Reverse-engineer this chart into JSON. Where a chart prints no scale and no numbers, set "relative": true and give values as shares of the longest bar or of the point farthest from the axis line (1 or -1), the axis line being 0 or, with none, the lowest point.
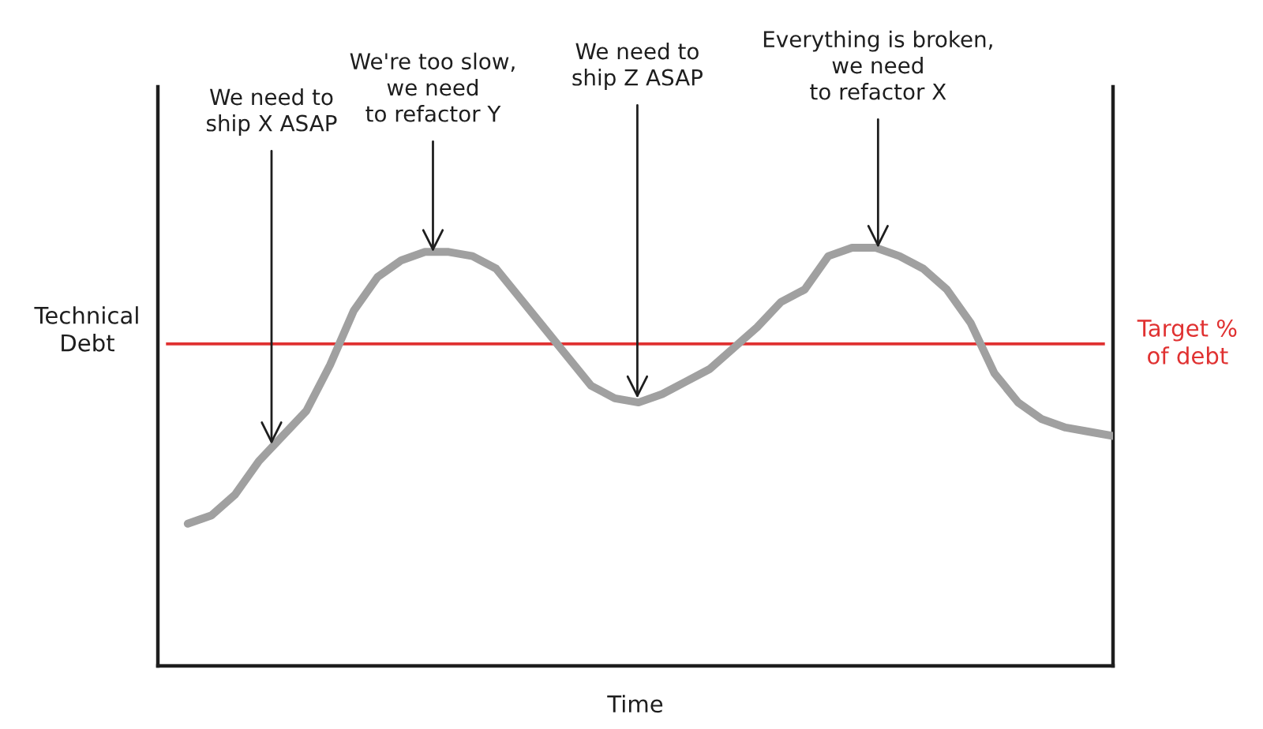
{
  "chart_data": {
    "type": "line",
    "xlabel": "Time",
    "ylabel": "Technical\nDebt",
    "relative": true,
    "categories": [
      null,
      null,
      null,
      null,
      null,
      null,
      null,
      null,
      null,
      null,
      null,
      null,
      null,
      null,
      null,
      null,
      null,
      null,
      null,
      null,
      null,
      null,
      null,
      null,
      null,
      null,
      null,
      null,
      null,
      null,
      null,
      null,
      null,
      null,
      null,
      null,
      null,
      null,
      null,
      null
    ],
    "series": [
      {
        "color": "#a0a0a0",
        "values": [
          0.34,
          0.36,
          0.41,
          0.49,
          0.55,
          0.61,
          0.72,
          0.85,
          0.93,
          0.97,
          0.99,
          0.99,
          0.98,
          0.95,
          0.88,
          0.81,
          0.74,
          0.67,
          0.64,
          0.63,
          0.65,
          0.68,
          0.71,
          0.76,
          0.81,
          0.87,
          0.9,
          0.98,
          1.0,
          1.0,
          0.98,
          0.95,
          0.9,
          0.82,
          0.7,
          0.63,
          0.59,
          0.57,
          0.56,
          0.55
        ]
      }
    ],
    "ref_lines": [
      {
        "axis": "y",
        "value": 0.77,
        "label": "Target %\nof debt",
        "color": "#e03131"
      }
    ],
    "annotations": [
      {
        "text": "We need to\nship X ASAP",
        "y": 0.53
      },
      {
        "text": "We're too slow,\nwe need\nto refactor Y",
        "y": 0.99
      },
      {
        "text": "We need to\nship Z ASAP",
        "y": 0.64
      },
      {
        "text": "Everything is broken,\nwe need\nto refactor X",
        "y": 1.0
      }
    ],
    "line_style": "solid",
    "grid": false,
    "legend": false
  }
}
